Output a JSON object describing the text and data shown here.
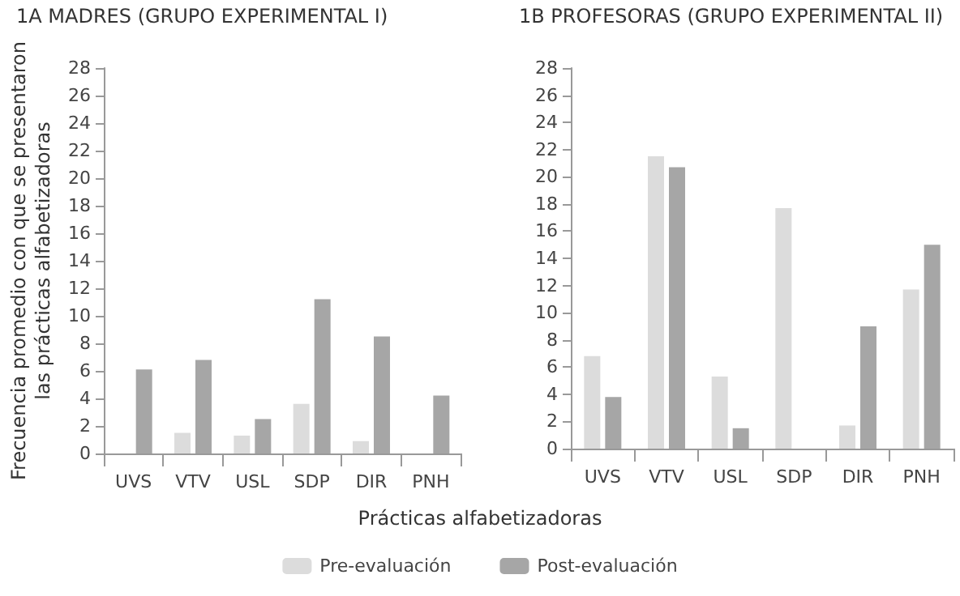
{
  "chart_data": [
    {
      "type": "bar",
      "title": "1A MADRES (GRUPO EXPERIMENTAL I)",
      "ylabel": "Frecuencia promedio con que se presentaron\nlas prácticas alfabetizadoras",
      "xlabel": "Prácticas alfabetizadoras",
      "legend": "bottom",
      "categories": [
        "UVS",
        "VTV",
        "USL",
        "SDP",
        "DIR",
        "PNH"
      ],
      "series": [
        {
          "name": "Pre-evaluación",
          "color": "#dcdcdc",
          "values": [
            null,
            1.5,
            1.3,
            3.6,
            0.9,
            null
          ]
        },
        {
          "name": "Post-evaluación",
          "color": "#a6a6a6",
          "values": [
            6.1,
            6.8,
            2.5,
            11.2,
            8.5,
            4.2
          ]
        }
      ],
      "ylim": [
        0,
        28
      ],
      "yticks": [
        0,
        2,
        4,
        6,
        8,
        10,
        12,
        14,
        16,
        18,
        20,
        22,
        24,
        26,
        28
      ],
      "grid": false
    },
    {
      "type": "bar",
      "title": "1B PROFESORAS (GRUPO EXPERIMENTAL II)",
      "categories": [
        "UVS",
        "VTV",
        "USL",
        "SDP",
        "DIR",
        "PNH"
      ],
      "series": [
        {
          "color": "#dcdcdc",
          "values": [
            6.8,
            21.5,
            5.3,
            17.7,
            1.7,
            11.7
          ]
        },
        {
          "color": "#a6a6a6",
          "values": [
            3.8,
            20.7,
            1.5,
            null,
            9.0,
            15.0
          ]
        }
      ],
      "ylim": [
        0,
        28
      ],
      "yticks": [
        0,
        2,
        4,
        6,
        8,
        10,
        12,
        14,
        16,
        18,
        20,
        22,
        24,
        26,
        28
      ],
      "grid": false
    }
  ]
}
